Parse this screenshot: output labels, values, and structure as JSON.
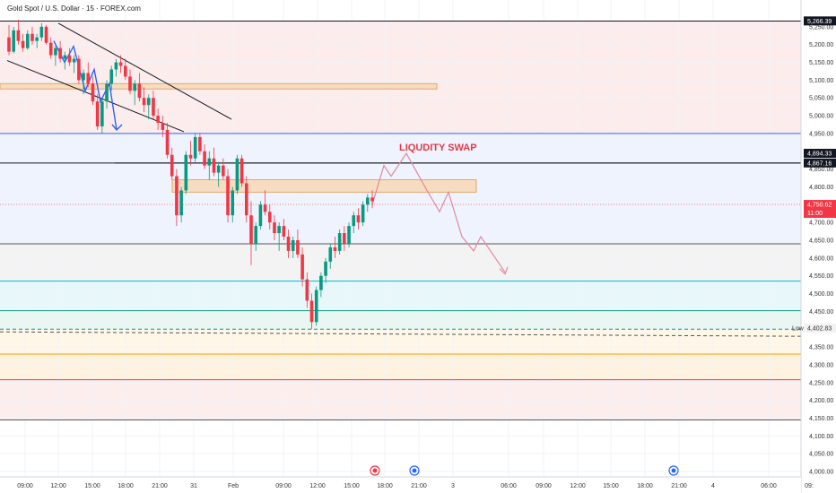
{
  "chart_data": {
    "type": "candlestick",
    "title": "Gold Spot / U.S. Dollar · 15 · FOREX.com",
    "ylim": [
      4000,
      5300
    ],
    "y_ticks": [
      5250,
      5200,
      5150,
      5100,
      5050,
      5000,
      4950,
      4900,
      4850,
      4800,
      4750,
      4700,
      4650,
      4600,
      4550,
      4500,
      4450,
      4400,
      4350,
      4300,
      4250,
      4200,
      4150,
      4100,
      4050,
      4000
    ],
    "x_tick_labels": [
      "09:00",
      "12:00",
      "15:00",
      "18:00",
      "21:00",
      "31",
      "Feb",
      "09:00",
      "12:00",
      "15:00",
      "18:00",
      "21:00",
      "3",
      "06:00",
      "09:00",
      "12:00",
      "15:00",
      "18:00",
      "21:00",
      "4",
      "06:00",
      "09:"
    ],
    "price_labels": [
      {
        "value": "5,266.39",
        "price": 5266.39,
        "color": "#131722"
      },
      {
        "value": "4,894.33",
        "price": 4894.33,
        "color": "#131722"
      },
      {
        "value": "4,867.16",
        "price": 4867.16,
        "color": "#131722"
      },
      {
        "value": "4,750.62",
        "price": 4750.62,
        "color": "#f23645",
        "sub": "11:00"
      },
      {
        "value": "4,402.83",
        "price": 4402.83,
        "color": "#f2f2f2",
        "text_color": "#333333",
        "tag": "Low"
      }
    ],
    "annotation": "LIQUDITY SWAP",
    "horizontal_levels": [
      {
        "price": 5266,
        "color": "#131722"
      },
      {
        "price": 4950,
        "color": "#2962ff"
      },
      {
        "price": 4867,
        "color": "#131722"
      },
      {
        "price": 4640,
        "color": "#555555"
      },
      {
        "price": 4535,
        "color": "#00bcd4"
      },
      {
        "price": 4452,
        "color": "#089981"
      },
      {
        "price": 4400,
        "color": "#089981"
      },
      {
        "price": 4330,
        "color": "#ff9800"
      },
      {
        "price": 4258,
        "color": "#f23645"
      },
      {
        "price": 4145,
        "color": "#555555"
      }
    ],
    "candles": [
      [
        5220,
        5255,
        5170,
        5180
      ],
      [
        5180,
        5250,
        5175,
        5240
      ],
      [
        5240,
        5270,
        5200,
        5210
      ],
      [
        5210,
        5230,
        5180,
        5190
      ],
      [
        5190,
        5240,
        5185,
        5230
      ],
      [
        5230,
        5250,
        5200,
        5210
      ],
      [
        5210,
        5230,
        5190,
        5220
      ],
      [
        5220,
        5260,
        5210,
        5250
      ],
      [
        5250,
        5255,
        5200,
        5205
      ],
      [
        5205,
        5220,
        5160,
        5170
      ],
      [
        5170,
        5200,
        5140,
        5190
      ],
      [
        5190,
        5210,
        5150,
        5160
      ],
      [
        5160,
        5180,
        5130,
        5170
      ],
      [
        5170,
        5190,
        5140,
        5150
      ],
      [
        5150,
        5170,
        5120,
        5160
      ],
      [
        5160,
        5170,
        5090,
        5100
      ],
      [
        5100,
        5130,
        5060,
        5120
      ],
      [
        5120,
        5150,
        5080,
        5090
      ],
      [
        5090,
        5110,
        5030,
        5040
      ],
      [
        5040,
        5060,
        4960,
        4970
      ],
      [
        4970,
        5050,
        4950,
        5040
      ],
      [
        5040,
        5100,
        5020,
        5090
      ],
      [
        5090,
        5140,
        5070,
        5130
      ],
      [
        5130,
        5160,
        5110,
        5150
      ],
      [
        5150,
        5170,
        5120,
        5140
      ],
      [
        5140,
        5160,
        5100,
        5110
      ],
      [
        5110,
        5130,
        5060,
        5070
      ],
      [
        5070,
        5100,
        5030,
        5090
      ],
      [
        5090,
        5120,
        5040,
        5050
      ],
      [
        5050,
        5080,
        5010,
        5030
      ],
      [
        5030,
        5060,
        4990,
        5050
      ],
      [
        5050,
        5070,
        4990,
        5000
      ],
      [
        5000,
        5020,
        4960,
        4980
      ],
      [
        4980,
        5000,
        4940,
        4960
      ],
      [
        4960,
        4980,
        4880,
        4890
      ],
      [
        4890,
        4910,
        4820,
        4830
      ],
      [
        4830,
        4850,
        4690,
        4720
      ],
      [
        4720,
        4800,
        4700,
        4790
      ],
      [
        4790,
        4900,
        4780,
        4890
      ],
      [
        4890,
        4930,
        4860,
        4880
      ],
      [
        4880,
        4950,
        4870,
        4940
      ],
      [
        4940,
        4950,
        4890,
        4900
      ],
      [
        4900,
        4920,
        4850,
        4860
      ],
      [
        4860,
        4900,
        4820,
        4880
      ],
      [
        4880,
        4910,
        4830,
        4840
      ],
      [
        4840,
        4870,
        4800,
        4860
      ],
      [
        4860,
        4880,
        4820,
        4830
      ],
      [
        4830,
        4850,
        4700,
        4720
      ],
      [
        4720,
        4800,
        4700,
        4790
      ],
      [
        4790,
        4890,
        4780,
        4880
      ],
      [
        4880,
        4890,
        4800,
        4810
      ],
      [
        4810,
        4830,
        4700,
        4720
      ],
      [
        4720,
        4760,
        4580,
        4640
      ],
      [
        4640,
        4700,
        4620,
        4690
      ],
      [
        4690,
        4760,
        4680,
        4750
      ],
      [
        4750,
        4790,
        4720,
        4730
      ],
      [
        4730,
        4750,
        4680,
        4700
      ],
      [
        4700,
        4720,
        4650,
        4670
      ],
      [
        4670,
        4700,
        4620,
        4690
      ],
      [
        4690,
        4710,
        4650,
        4660
      ],
      [
        4660,
        4680,
        4600,
        4620
      ],
      [
        4620,
        4660,
        4600,
        4650
      ],
      [
        4650,
        4680,
        4600,
        4610
      ],
      [
        4610,
        4630,
        4520,
        4540
      ],
      [
        4540,
        4560,
        4460,
        4480
      ],
      [
        4480,
        4500,
        4400,
        4420
      ],
      [
        4420,
        4520,
        4410,
        4510
      ],
      [
        4510,
        4560,
        4490,
        4550
      ],
      [
        4550,
        4600,
        4530,
        4590
      ],
      [
        4590,
        4640,
        4570,
        4630
      ],
      [
        4630,
        4660,
        4600,
        4620
      ],
      [
        4620,
        4680,
        4610,
        4670
      ],
      [
        4670,
        4690,
        4620,
        4640
      ],
      [
        4640,
        4700,
        4630,
        4690
      ],
      [
        4690,
        4730,
        4670,
        4720
      ],
      [
        4720,
        4740,
        4680,
        4700
      ],
      [
        4700,
        4760,
        4690,
        4750
      ],
      [
        4750,
        4780,
        4730,
        4770
      ],
      [
        4770,
        4790,
        4740,
        4760
      ]
    ],
    "projection": [
      [
        4750,
        4750
      ],
      [
        4860,
        4860
      ],
      [
        4830,
        4830
      ],
      [
        4894,
        4894
      ],
      [
        4790,
        4790
      ],
      [
        4730,
        4730
      ],
      [
        4785,
        4785
      ],
      [
        4660,
        4660
      ],
      [
        4620,
        4620
      ],
      [
        4660,
        4660
      ],
      [
        4560,
        4560
      ]
    ]
  }
}
